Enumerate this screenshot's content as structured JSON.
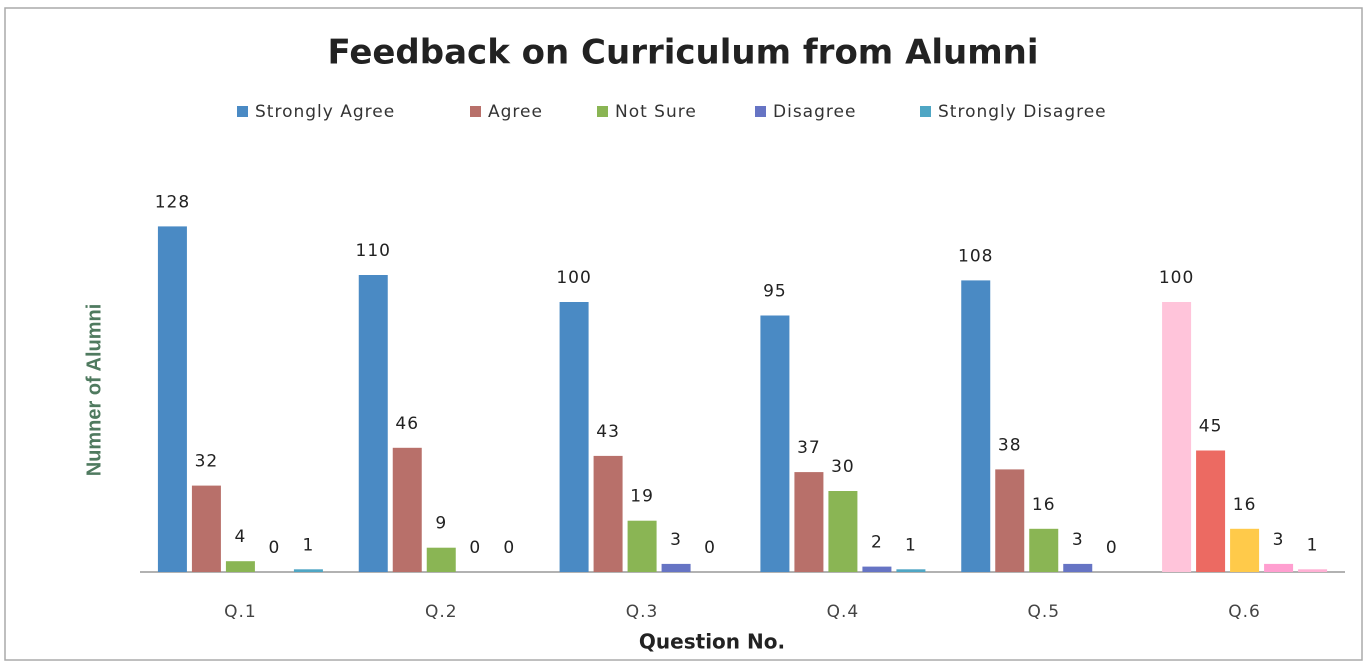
{
  "chart_data": {
    "type": "bar",
    "title": "Feedback on Curriculum from Alumni",
    "xlabel": "Question No.",
    "ylabel": "Numner of Alumni",
    "categories": [
      "Q.1",
      "Q.2",
      "Q.3",
      "Q.4",
      "Q.5",
      "Q.6"
    ],
    "series": [
      {
        "name": "Strongly Agree",
        "color": "#4a8ac4",
        "colors": [
          "#4a8ac4",
          "#4a8ac4",
          "#4a8ac4",
          "#4a8ac4",
          "#4a8ac4",
          "#ffc4da"
        ],
        "values": [
          128,
          110,
          100,
          95,
          108,
          100
        ]
      },
      {
        "name": "Agree",
        "color": "#b8706a",
        "colors": [
          "#b8706a",
          "#b8706a",
          "#b8706a",
          "#b8706a",
          "#b8706a",
          "#ec6a62"
        ],
        "values": [
          32,
          46,
          43,
          37,
          38,
          45
        ]
      },
      {
        "name": "Not Sure",
        "color": "#8ab554",
        "colors": [
          "#8ab554",
          "#8ab554",
          "#8ab554",
          "#8ab554",
          "#8ab554",
          "#ffca4a"
        ],
        "values": [
          4,
          9,
          19,
          30,
          16,
          16
        ]
      },
      {
        "name": "Disagree",
        "color": "#6674c4",
        "colors": [
          "#6674c4",
          "#6674c4",
          "#6674c4",
          "#6674c4",
          "#6674c4",
          "#ff9fd0"
        ],
        "values": [
          0,
          0,
          3,
          2,
          3,
          3
        ]
      },
      {
        "name": "Strongly Disagree",
        "color": "#4fa6c4",
        "colors": [
          "#4fa6c4",
          "#4fa6c4",
          "#4fa6c4",
          "#4fa6c4",
          "#4fa6c4",
          "#ffb0d4"
        ],
        "values": [
          1,
          0,
          0,
          1,
          0,
          1
        ]
      }
    ],
    "ylim": [
      0,
      140
    ],
    "legend": "top"
  }
}
